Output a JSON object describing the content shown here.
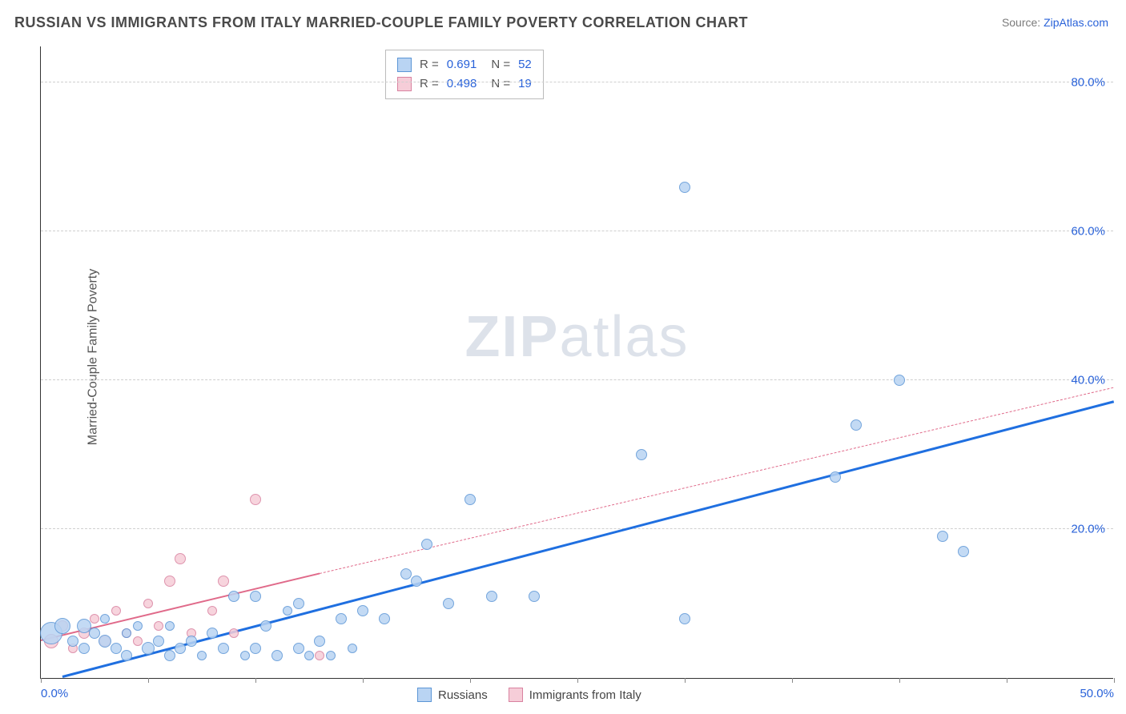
{
  "title": "RUSSIAN VS IMMIGRANTS FROM ITALY MARRIED-COUPLE FAMILY POVERTY CORRELATION CHART",
  "source_label": "Source:",
  "source_name": "ZipAtlas.com",
  "ylabel": "Married-Couple Family Poverty",
  "watermark_a": "ZIP",
  "watermark_b": "atlas",
  "chart": {
    "type": "scatter",
    "xlim": [
      0,
      50
    ],
    "ylim": [
      0,
      85
    ],
    "x_ticks": [
      0,
      5,
      10,
      15,
      20,
      25,
      30,
      35,
      40,
      45,
      50
    ],
    "x_tick_labels": {
      "0": "0.0%",
      "50": "50.0%"
    },
    "y_gridlines": [
      20,
      40,
      60,
      80
    ],
    "y_tick_labels": {
      "20": "20.0%",
      "40": "40.0%",
      "60": "60.0%",
      "80": "80.0%"
    },
    "background_color": "#ffffff",
    "grid_color": "#cfcfcf",
    "axis_color": "#333333",
    "label_color": "#555555",
    "tick_label_color": "#2962d9",
    "title_color": "#4a4a4a",
    "title_fontsize": 18,
    "label_fontsize": 16,
    "tick_fontsize": 15
  },
  "series": {
    "russians": {
      "label": "Russians",
      "fill": "#b9d4f3",
      "stroke": "#5c96d6",
      "trend_color": "#1f6fe0",
      "trend_style": "solid",
      "trend_width": 3,
      "trend": {
        "x1": 1,
        "y1": 0,
        "x2": 50,
        "y2": 37
      },
      "R_label": "R  =",
      "R": "0.691",
      "N_label": "N  =",
      "N": "52",
      "points": [
        {
          "x": 0.5,
          "y": 6,
          "r": 14
        },
        {
          "x": 1,
          "y": 7,
          "r": 10
        },
        {
          "x": 1.5,
          "y": 5,
          "r": 7
        },
        {
          "x": 2,
          "y": 7,
          "r": 9
        },
        {
          "x": 2,
          "y": 4,
          "r": 7
        },
        {
          "x": 2.5,
          "y": 6,
          "r": 7
        },
        {
          "x": 3,
          "y": 5,
          "r": 8
        },
        {
          "x": 3,
          "y": 8,
          "r": 6
        },
        {
          "x": 3.5,
          "y": 4,
          "r": 7
        },
        {
          "x": 4,
          "y": 6,
          "r": 6
        },
        {
          "x": 4,
          "y": 3,
          "r": 7
        },
        {
          "x": 4.5,
          "y": 7,
          "r": 6
        },
        {
          "x": 5,
          "y": 4,
          "r": 8
        },
        {
          "x": 5.5,
          "y": 5,
          "r": 7
        },
        {
          "x": 6,
          "y": 3,
          "r": 7
        },
        {
          "x": 6,
          "y": 7,
          "r": 6
        },
        {
          "x": 6.5,
          "y": 4,
          "r": 7
        },
        {
          "x": 7,
          "y": 5,
          "r": 7
        },
        {
          "x": 7.5,
          "y": 3,
          "r": 6
        },
        {
          "x": 8,
          "y": 6,
          "r": 7
        },
        {
          "x": 8.5,
          "y": 4,
          "r": 7
        },
        {
          "x": 9,
          "y": 11,
          "r": 7
        },
        {
          "x": 9.5,
          "y": 3,
          "r": 6
        },
        {
          "x": 10,
          "y": 11,
          "r": 7
        },
        {
          "x": 10,
          "y": 4,
          "r": 7
        },
        {
          "x": 10.5,
          "y": 7,
          "r": 7
        },
        {
          "x": 11,
          "y": 3,
          "r": 7
        },
        {
          "x": 11.5,
          "y": 9,
          "r": 6
        },
        {
          "x": 12,
          "y": 4,
          "r": 7
        },
        {
          "x": 12,
          "y": 10,
          "r": 7
        },
        {
          "x": 12.5,
          "y": 3,
          "r": 6
        },
        {
          "x": 13,
          "y": 5,
          "r": 7
        },
        {
          "x": 13.5,
          "y": 3,
          "r": 6
        },
        {
          "x": 14,
          "y": 8,
          "r": 7
        },
        {
          "x": 14.5,
          "y": 4,
          "r": 6
        },
        {
          "x": 15,
          "y": 9,
          "r": 7
        },
        {
          "x": 16,
          "y": 8,
          "r": 7
        },
        {
          "x": 17,
          "y": 14,
          "r": 7
        },
        {
          "x": 17.5,
          "y": 13,
          "r": 7
        },
        {
          "x": 18,
          "y": 18,
          "r": 7
        },
        {
          "x": 19,
          "y": 10,
          "r": 7
        },
        {
          "x": 20,
          "y": 24,
          "r": 7
        },
        {
          "x": 21,
          "y": 11,
          "r": 7
        },
        {
          "x": 23,
          "y": 11,
          "r": 7
        },
        {
          "x": 28,
          "y": 30,
          "r": 7
        },
        {
          "x": 30,
          "y": 66,
          "r": 7
        },
        {
          "x": 30,
          "y": 8,
          "r": 7
        },
        {
          "x": 37,
          "y": 27,
          "r": 7
        },
        {
          "x": 38,
          "y": 34,
          "r": 7
        },
        {
          "x": 40,
          "y": 40,
          "r": 7
        },
        {
          "x": 42,
          "y": 19,
          "r": 7
        },
        {
          "x": 43,
          "y": 17,
          "r": 7
        }
      ]
    },
    "italy": {
      "label": "Immigrants from Italy",
      "fill": "#f6cdd8",
      "stroke": "#d982a0",
      "trend_color": "#e06a8a",
      "trend_style_solid": "solid",
      "trend_width_solid": 2.5,
      "trend_solid": {
        "x1": 0,
        "y1": 5,
        "x2": 13,
        "y2": 14
      },
      "trend_style_dash": "dashed",
      "trend_width_dash": 1.5,
      "trend_dash": {
        "x1": 13,
        "y1": 14,
        "x2": 50,
        "y2": 39
      },
      "R_label": "R  =",
      "R": "0.498",
      "N_label": "N  =",
      "N": "19",
      "points": [
        {
          "x": 0.5,
          "y": 5,
          "r": 9
        },
        {
          "x": 1,
          "y": 7,
          "r": 7
        },
        {
          "x": 1.5,
          "y": 4,
          "r": 6
        },
        {
          "x": 2,
          "y": 6,
          "r": 7
        },
        {
          "x": 2.5,
          "y": 8,
          "r": 6
        },
        {
          "x": 3,
          "y": 5,
          "r": 7
        },
        {
          "x": 3.5,
          "y": 9,
          "r": 6
        },
        {
          "x": 4,
          "y": 6,
          "r": 6
        },
        {
          "x": 4.5,
          "y": 5,
          "r": 6
        },
        {
          "x": 5,
          "y": 10,
          "r": 6
        },
        {
          "x": 5.5,
          "y": 7,
          "r": 6
        },
        {
          "x": 6,
          "y": 13,
          "r": 7
        },
        {
          "x": 6.5,
          "y": 16,
          "r": 7
        },
        {
          "x": 7,
          "y": 6,
          "r": 6
        },
        {
          "x": 8,
          "y": 9,
          "r": 6
        },
        {
          "x": 8.5,
          "y": 13,
          "r": 7
        },
        {
          "x": 9,
          "y": 6,
          "r": 6
        },
        {
          "x": 10,
          "y": 24,
          "r": 7
        },
        {
          "x": 13,
          "y": 3,
          "r": 6
        }
      ]
    }
  }
}
